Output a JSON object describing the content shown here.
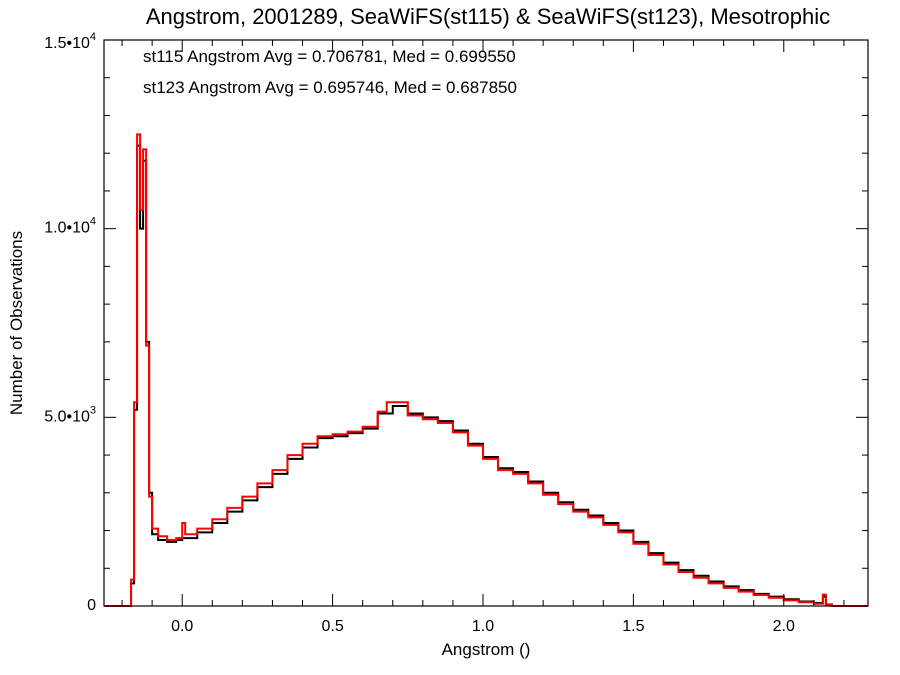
{
  "chart_data": {
    "type": "histogram",
    "title": "Angstrom, 2001289, SeaWiFS(st115) & SeaWiFS(st123), Mesotrophic",
    "xlabel": "Angstrom ()",
    "ylabel": "Number of Observations",
    "xlim": [
      -0.26,
      2.28
    ],
    "ylim": [
      0,
      15000
    ],
    "x_ticks": [
      {
        "value": 0.0,
        "label": "0.0"
      },
      {
        "value": 0.5,
        "label": "0.5"
      },
      {
        "value": 1.0,
        "label": "1.0"
      },
      {
        "value": 1.5,
        "label": "1.5"
      },
      {
        "value": 2.0,
        "label": "2.0"
      }
    ],
    "y_ticks": [
      {
        "value": 0,
        "mant": "0",
        "exp": ""
      },
      {
        "value": 5000,
        "mant": "5.0•10",
        "exp": "3"
      },
      {
        "value": 10000,
        "mant": "1.0•10",
        "exp": "4"
      },
      {
        "value": 15000,
        "mant": "1.5•10",
        "exp": "4"
      }
    ],
    "grid": false,
    "annotations": [
      {
        "text": "st115 Angstrom Avg = 0.706781, Med = 0.699550",
        "color": "#000000"
      },
      {
        "text": "st123 Angstrom Avg = 0.695746, Med = 0.687850",
        "color": "#ff0000"
      }
    ],
    "series": [
      {
        "color": "#000000",
        "points": [
          [
            -0.26,
            0
          ],
          [
            -0.18,
            0
          ],
          [
            -0.17,
            600
          ],
          [
            -0.16,
            5200
          ],
          [
            -0.15,
            12200
          ],
          [
            -0.14,
            10000
          ],
          [
            -0.13,
            11800
          ],
          [
            -0.12,
            7000
          ],
          [
            -0.11,
            3000
          ],
          [
            -0.1,
            1900
          ],
          [
            -0.08,
            1750
          ],
          [
            -0.05,
            1700
          ],
          [
            -0.02,
            1750
          ],
          [
            0.0,
            1800
          ],
          [
            0.05,
            1950
          ],
          [
            0.1,
            2200
          ],
          [
            0.15,
            2500
          ],
          [
            0.2,
            2800
          ],
          [
            0.25,
            3150
          ],
          [
            0.3,
            3500
          ],
          [
            0.35,
            3900
          ],
          [
            0.4,
            4200
          ],
          [
            0.45,
            4450
          ],
          [
            0.5,
            4500
          ],
          [
            0.55,
            4580
          ],
          [
            0.6,
            4700
          ],
          [
            0.65,
            5100
          ],
          [
            0.7,
            5300
          ],
          [
            0.75,
            5100
          ],
          [
            0.8,
            5000
          ],
          [
            0.85,
            4900
          ],
          [
            0.9,
            4650
          ],
          [
            0.95,
            4300
          ],
          [
            1.0,
            3950
          ],
          [
            1.05,
            3650
          ],
          [
            1.1,
            3550
          ],
          [
            1.15,
            3300
          ],
          [
            1.2,
            3000
          ],
          [
            1.25,
            2750
          ],
          [
            1.3,
            2550
          ],
          [
            1.35,
            2400
          ],
          [
            1.4,
            2200
          ],
          [
            1.45,
            2000
          ],
          [
            1.5,
            1700
          ],
          [
            1.55,
            1400
          ],
          [
            1.6,
            1150
          ],
          [
            1.65,
            950
          ],
          [
            1.7,
            800
          ],
          [
            1.75,
            650
          ],
          [
            1.8,
            520
          ],
          [
            1.85,
            420
          ],
          [
            1.9,
            320
          ],
          [
            1.95,
            250
          ],
          [
            2.0,
            180
          ],
          [
            2.05,
            120
          ],
          [
            2.1,
            80
          ],
          [
            2.13,
            250
          ],
          [
            2.14,
            40
          ],
          [
            2.16,
            0
          ],
          [
            2.28,
            0
          ]
        ]
      },
      {
        "color": "#ff0000",
        "points": [
          [
            -0.26,
            0
          ],
          [
            -0.18,
            0
          ],
          [
            -0.17,
            700
          ],
          [
            -0.16,
            5400
          ],
          [
            -0.15,
            12500
          ],
          [
            -0.14,
            10500
          ],
          [
            -0.13,
            12100
          ],
          [
            -0.12,
            6900
          ],
          [
            -0.11,
            2900
          ],
          [
            -0.1,
            2050
          ],
          [
            -0.08,
            1850
          ],
          [
            -0.05,
            1750
          ],
          [
            -0.02,
            1800
          ],
          [
            0.0,
            2200
          ],
          [
            0.01,
            1900
          ],
          [
            0.05,
            2050
          ],
          [
            0.1,
            2300
          ],
          [
            0.15,
            2600
          ],
          [
            0.2,
            2900
          ],
          [
            0.25,
            3250
          ],
          [
            0.3,
            3600
          ],
          [
            0.35,
            4000
          ],
          [
            0.4,
            4300
          ],
          [
            0.45,
            4500
          ],
          [
            0.5,
            4550
          ],
          [
            0.55,
            4620
          ],
          [
            0.6,
            4750
          ],
          [
            0.65,
            5150
          ],
          [
            0.68,
            5400
          ],
          [
            0.75,
            5050
          ],
          [
            0.8,
            4950
          ],
          [
            0.85,
            4850
          ],
          [
            0.9,
            4600
          ],
          [
            0.95,
            4250
          ],
          [
            1.0,
            3900
          ],
          [
            1.05,
            3600
          ],
          [
            1.1,
            3500
          ],
          [
            1.15,
            3250
          ],
          [
            1.2,
            2950
          ],
          [
            1.25,
            2700
          ],
          [
            1.3,
            2500
          ],
          [
            1.35,
            2350
          ],
          [
            1.4,
            2150
          ],
          [
            1.45,
            1950
          ],
          [
            1.5,
            1650
          ],
          [
            1.55,
            1350
          ],
          [
            1.6,
            1100
          ],
          [
            1.65,
            900
          ],
          [
            1.7,
            750
          ],
          [
            1.75,
            600
          ],
          [
            1.8,
            480
          ],
          [
            1.85,
            380
          ],
          [
            1.9,
            290
          ],
          [
            1.95,
            220
          ],
          [
            2.0,
            150
          ],
          [
            2.05,
            100
          ],
          [
            2.1,
            60
          ],
          [
            2.13,
            300
          ],
          [
            2.14,
            30
          ],
          [
            2.16,
            0
          ],
          [
            2.28,
            0
          ]
        ]
      }
    ]
  }
}
